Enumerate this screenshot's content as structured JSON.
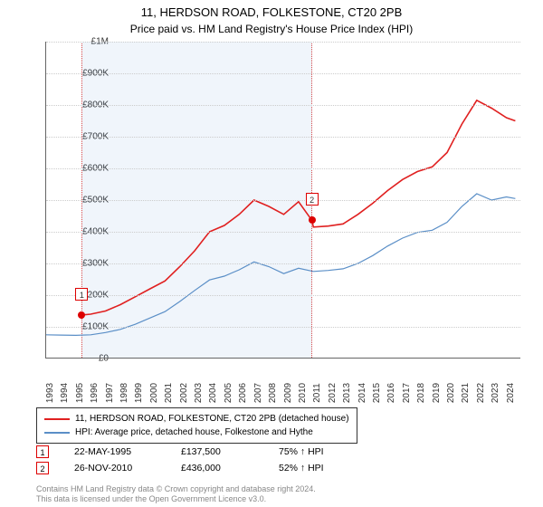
{
  "title": "11, HERDSON ROAD, FOLKESTONE, CT20 2PB",
  "subtitle": "Price paid vs. HM Land Registry's House Price Index (HPI)",
  "chart": {
    "type": "line",
    "ylim": [
      0,
      1000000
    ],
    "ytick_step": 100000,
    "ylabels": [
      "£0",
      "£100K",
      "£200K",
      "£300K",
      "£400K",
      "£500K",
      "£600K",
      "£700K",
      "£800K",
      "£900K",
      "£1M"
    ],
    "xlim": [
      1993,
      2025
    ],
    "xlabels": [
      "1993",
      "1994",
      "1995",
      "1996",
      "1997",
      "1998",
      "1999",
      "2000",
      "2001",
      "2002",
      "2003",
      "2004",
      "2005",
      "2006",
      "2007",
      "2008",
      "2009",
      "2010",
      "2011",
      "2012",
      "2013",
      "2014",
      "2015",
      "2016",
      "2017",
      "2018",
      "2019",
      "2020",
      "2021",
      "2022",
      "2023",
      "2024"
    ],
    "background_color": "#ffffff",
    "grid_color": "#cccccc",
    "shaded_range": [
      1995.4,
      2010.9
    ],
    "shaded_color": "rgba(70,130,200,0.08)",
    "series": [
      {
        "name": "red",
        "color": "#e02020",
        "width": 1.6,
        "points": [
          [
            1995.4,
            137500
          ],
          [
            1996,
            140000
          ],
          [
            1997,
            150000
          ],
          [
            1998,
            170000
          ],
          [
            1999,
            195000
          ],
          [
            2000,
            220000
          ],
          [
            2001,
            245000
          ],
          [
            2002,
            290000
          ],
          [
            2003,
            340000
          ],
          [
            2004,
            400000
          ],
          [
            2005,
            420000
          ],
          [
            2006,
            455000
          ],
          [
            2007,
            500000
          ],
          [
            2008,
            480000
          ],
          [
            2009,
            455000
          ],
          [
            2010,
            495000
          ],
          [
            2010.9,
            436000
          ],
          [
            2011,
            415000
          ],
          [
            2012,
            418000
          ],
          [
            2013,
            425000
          ],
          [
            2014,
            455000
          ],
          [
            2015,
            490000
          ],
          [
            2016,
            530000
          ],
          [
            2017,
            565000
          ],
          [
            2018,
            590000
          ],
          [
            2019,
            605000
          ],
          [
            2020,
            650000
          ],
          [
            2021,
            740000
          ],
          [
            2022,
            815000
          ],
          [
            2023,
            790000
          ],
          [
            2024,
            760000
          ],
          [
            2024.6,
            750000
          ]
        ]
      },
      {
        "name": "blue",
        "color": "#5b8fc7",
        "width": 1.2,
        "points": [
          [
            1993,
            75000
          ],
          [
            1994,
            74000
          ],
          [
            1995,
            73000
          ],
          [
            1996,
            75000
          ],
          [
            1997,
            82000
          ],
          [
            1998,
            92000
          ],
          [
            1999,
            108000
          ],
          [
            2000,
            128000
          ],
          [
            2001,
            148000
          ],
          [
            2002,
            180000
          ],
          [
            2003,
            215000
          ],
          [
            2004,
            248000
          ],
          [
            2005,
            260000
          ],
          [
            2006,
            280000
          ],
          [
            2007,
            305000
          ],
          [
            2008,
            290000
          ],
          [
            2009,
            268000
          ],
          [
            2010,
            285000
          ],
          [
            2011,
            275000
          ],
          [
            2012,
            278000
          ],
          [
            2013,
            283000
          ],
          [
            2014,
            300000
          ],
          [
            2015,
            325000
          ],
          [
            2016,
            355000
          ],
          [
            2017,
            380000
          ],
          [
            2018,
            398000
          ],
          [
            2019,
            405000
          ],
          [
            2020,
            430000
          ],
          [
            2021,
            480000
          ],
          [
            2022,
            520000
          ],
          [
            2023,
            500000
          ],
          [
            2024,
            510000
          ],
          [
            2024.6,
            505000
          ]
        ]
      }
    ],
    "markers": [
      {
        "id": "1",
        "x": 1995.4,
        "y": 137500,
        "box_y_offset": -30
      },
      {
        "id": "2",
        "x": 2010.9,
        "y": 436000,
        "box_y_offset": -30
      }
    ]
  },
  "legend": {
    "items": [
      {
        "color": "#e02020",
        "label": "11, HERDSON ROAD, FOLKESTONE, CT20 2PB (detached house)"
      },
      {
        "color": "#5b8fc7",
        "label": "HPI: Average price, detached house, Folkestone and Hythe"
      }
    ]
  },
  "sales": [
    {
      "id": "1",
      "date": "22-MAY-1995",
      "price": "£137,500",
      "delta": "75% ↑ HPI"
    },
    {
      "id": "2",
      "date": "26-NOV-2010",
      "price": "£436,000",
      "delta": "52% ↑ HPI"
    }
  ],
  "footer_line1": "Contains HM Land Registry data © Crown copyright and database right 2024.",
  "footer_line2": "This data is licensed under the Open Government Licence v3.0."
}
